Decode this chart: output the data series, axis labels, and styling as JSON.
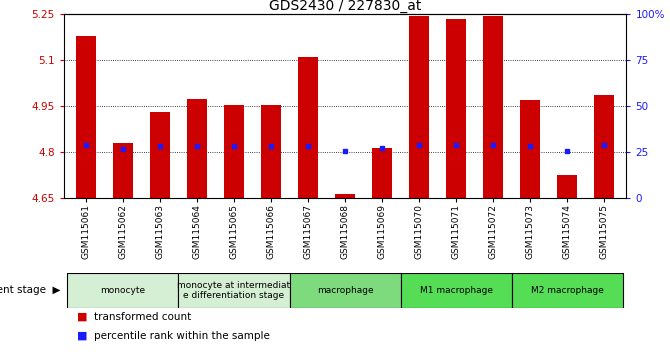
{
  "title": "GDS2430 / 227830_at",
  "samples": [
    "GSM115061",
    "GSM115062",
    "GSM115063",
    "GSM115064",
    "GSM115065",
    "GSM115066",
    "GSM115067",
    "GSM115068",
    "GSM115069",
    "GSM115070",
    "GSM115071",
    "GSM115072",
    "GSM115073",
    "GSM115074",
    "GSM115075"
  ],
  "red_values": [
    5.18,
    4.83,
    4.93,
    4.975,
    4.955,
    4.955,
    5.11,
    4.665,
    4.815,
    5.245,
    5.235,
    5.245,
    4.97,
    4.725,
    4.985
  ],
  "blue_values": [
    4.825,
    4.81,
    4.82,
    4.82,
    4.82,
    4.82,
    4.82,
    4.805,
    4.815,
    4.825,
    4.825,
    4.825,
    4.82,
    4.805,
    4.825
  ],
  "ylim": [
    4.65,
    5.25
  ],
  "yticks_left": [
    4.65,
    4.8,
    4.95,
    5.1,
    5.25
  ],
  "yticks_right": [
    0,
    25,
    50,
    75,
    100
  ],
  "bar_color": "#cc0000",
  "blue_color": "#1a1aff",
  "bar_width": 0.55,
  "background_plot": "#ffffff",
  "background_fig": "#ffffff",
  "tick_label_color_left": "#cc0000",
  "tick_label_color_right": "#1a1aff",
  "groups": [
    {
      "label": "monocyte",
      "start": 0,
      "end": 2,
      "color": "#d4efd4"
    },
    {
      "label": "monocyte at intermediate\ne differentiation stage",
      "start": 3,
      "end": 5,
      "color": "#d4efd4"
    },
    {
      "label": "macrophage",
      "start": 6,
      "end": 8,
      "color": "#7ddb7d"
    },
    {
      "label": "M1 macrophage",
      "start": 9,
      "end": 11,
      "color": "#55dd55"
    },
    {
      "label": "M2 macrophage",
      "start": 12,
      "end": 14,
      "color": "#55dd55"
    }
  ],
  "legend_items": [
    {
      "label": "transformed count",
      "color": "#cc0000"
    },
    {
      "label": "percentile rank within the sample",
      "color": "#1a1aff"
    }
  ],
  "dev_stage_label": "development stage",
  "title_fontsize": 10,
  "tick_fontsize": 7.5,
  "legend_fontsize": 7.5
}
